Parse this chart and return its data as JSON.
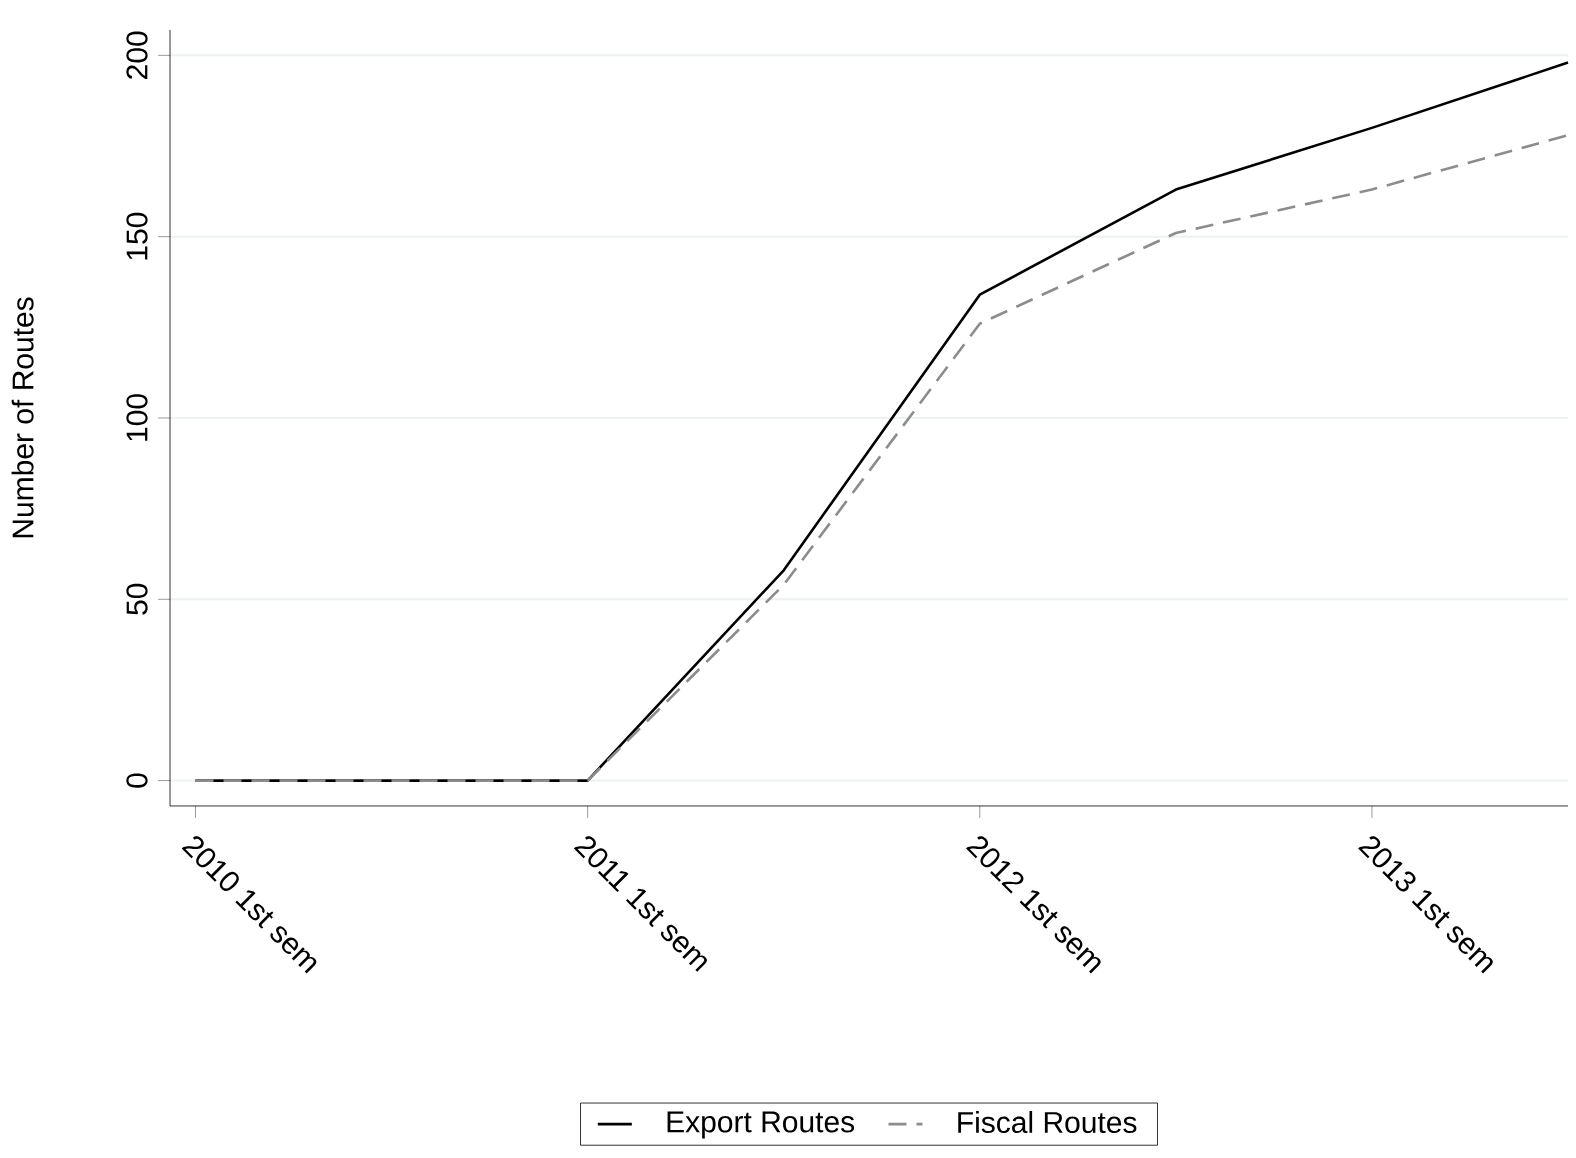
{
  "chart_data": {
    "type": "line",
    "ylabel": "Number of Routes",
    "categories": [
      "2010 1st sem",
      null,
      "2011 1st sem",
      null,
      "2012 1st sem",
      null,
      "2013 1st sem",
      null
    ],
    "series": [
      {
        "name": "Export Routes",
        "color": "#000000",
        "line_style": "solid",
        "values": [
          0,
          0,
          0,
          58,
          134,
          163,
          180,
          198
        ]
      },
      {
        "name": "Fiscal Routes",
        "color": "#8c8c8c",
        "line_style": "dashed",
        "values": [
          0,
          0,
          0,
          54,
          126,
          151,
          163,
          178
        ]
      }
    ],
    "ylim": [
      -7,
      207
    ],
    "yticks": [
      0,
      50,
      100,
      150,
      200
    ],
    "grid": "y",
    "legend": "bottom",
    "marker": "none"
  }
}
